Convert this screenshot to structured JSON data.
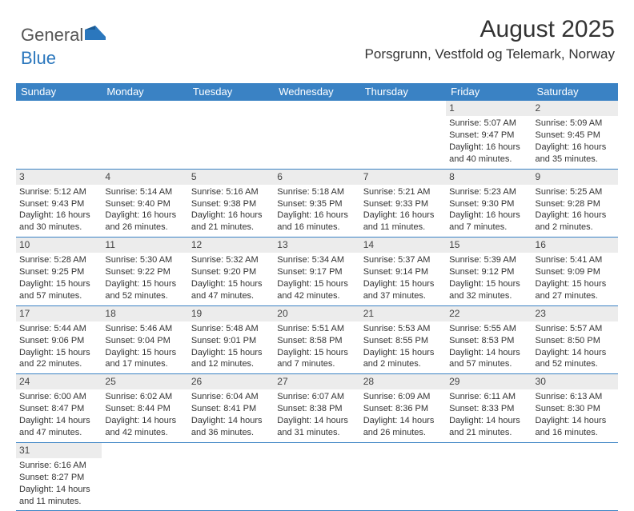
{
  "logo": {
    "text1": "General",
    "text2": "Blue"
  },
  "header": {
    "month_title": "August 2025",
    "location": "Porsgrunn, Vestfold og Telemark, Norway"
  },
  "colors": {
    "header_bg": "#3a82c4",
    "day_num_bg": "#ececec",
    "row_border": "#3a82c4"
  },
  "weekdays": [
    "Sunday",
    "Monday",
    "Tuesday",
    "Wednesday",
    "Thursday",
    "Friday",
    "Saturday"
  ],
  "weeks": [
    [
      null,
      null,
      null,
      null,
      null,
      {
        "n": "1",
        "sunrise": "Sunrise: 5:07 AM",
        "sunset": "Sunset: 9:47 PM",
        "day1": "Daylight: 16 hours",
        "day2": "and 40 minutes."
      },
      {
        "n": "2",
        "sunrise": "Sunrise: 5:09 AM",
        "sunset": "Sunset: 9:45 PM",
        "day1": "Daylight: 16 hours",
        "day2": "and 35 minutes."
      }
    ],
    [
      {
        "n": "3",
        "sunrise": "Sunrise: 5:12 AM",
        "sunset": "Sunset: 9:43 PM",
        "day1": "Daylight: 16 hours",
        "day2": "and 30 minutes."
      },
      {
        "n": "4",
        "sunrise": "Sunrise: 5:14 AM",
        "sunset": "Sunset: 9:40 PM",
        "day1": "Daylight: 16 hours",
        "day2": "and 26 minutes."
      },
      {
        "n": "5",
        "sunrise": "Sunrise: 5:16 AM",
        "sunset": "Sunset: 9:38 PM",
        "day1": "Daylight: 16 hours",
        "day2": "and 21 minutes."
      },
      {
        "n": "6",
        "sunrise": "Sunrise: 5:18 AM",
        "sunset": "Sunset: 9:35 PM",
        "day1": "Daylight: 16 hours",
        "day2": "and 16 minutes."
      },
      {
        "n": "7",
        "sunrise": "Sunrise: 5:21 AM",
        "sunset": "Sunset: 9:33 PM",
        "day1": "Daylight: 16 hours",
        "day2": "and 11 minutes."
      },
      {
        "n": "8",
        "sunrise": "Sunrise: 5:23 AM",
        "sunset": "Sunset: 9:30 PM",
        "day1": "Daylight: 16 hours",
        "day2": "and 7 minutes."
      },
      {
        "n": "9",
        "sunrise": "Sunrise: 5:25 AM",
        "sunset": "Sunset: 9:28 PM",
        "day1": "Daylight: 16 hours",
        "day2": "and 2 minutes."
      }
    ],
    [
      {
        "n": "10",
        "sunrise": "Sunrise: 5:28 AM",
        "sunset": "Sunset: 9:25 PM",
        "day1": "Daylight: 15 hours",
        "day2": "and 57 minutes."
      },
      {
        "n": "11",
        "sunrise": "Sunrise: 5:30 AM",
        "sunset": "Sunset: 9:22 PM",
        "day1": "Daylight: 15 hours",
        "day2": "and 52 minutes."
      },
      {
        "n": "12",
        "sunrise": "Sunrise: 5:32 AM",
        "sunset": "Sunset: 9:20 PM",
        "day1": "Daylight: 15 hours",
        "day2": "and 47 minutes."
      },
      {
        "n": "13",
        "sunrise": "Sunrise: 5:34 AM",
        "sunset": "Sunset: 9:17 PM",
        "day1": "Daylight: 15 hours",
        "day2": "and 42 minutes."
      },
      {
        "n": "14",
        "sunrise": "Sunrise: 5:37 AM",
        "sunset": "Sunset: 9:14 PM",
        "day1": "Daylight: 15 hours",
        "day2": "and 37 minutes."
      },
      {
        "n": "15",
        "sunrise": "Sunrise: 5:39 AM",
        "sunset": "Sunset: 9:12 PM",
        "day1": "Daylight: 15 hours",
        "day2": "and 32 minutes."
      },
      {
        "n": "16",
        "sunrise": "Sunrise: 5:41 AM",
        "sunset": "Sunset: 9:09 PM",
        "day1": "Daylight: 15 hours",
        "day2": "and 27 minutes."
      }
    ],
    [
      {
        "n": "17",
        "sunrise": "Sunrise: 5:44 AM",
        "sunset": "Sunset: 9:06 PM",
        "day1": "Daylight: 15 hours",
        "day2": "and 22 minutes."
      },
      {
        "n": "18",
        "sunrise": "Sunrise: 5:46 AM",
        "sunset": "Sunset: 9:04 PM",
        "day1": "Daylight: 15 hours",
        "day2": "and 17 minutes."
      },
      {
        "n": "19",
        "sunrise": "Sunrise: 5:48 AM",
        "sunset": "Sunset: 9:01 PM",
        "day1": "Daylight: 15 hours",
        "day2": "and 12 minutes."
      },
      {
        "n": "20",
        "sunrise": "Sunrise: 5:51 AM",
        "sunset": "Sunset: 8:58 PM",
        "day1": "Daylight: 15 hours",
        "day2": "and 7 minutes."
      },
      {
        "n": "21",
        "sunrise": "Sunrise: 5:53 AM",
        "sunset": "Sunset: 8:55 PM",
        "day1": "Daylight: 15 hours",
        "day2": "and 2 minutes."
      },
      {
        "n": "22",
        "sunrise": "Sunrise: 5:55 AM",
        "sunset": "Sunset: 8:53 PM",
        "day1": "Daylight: 14 hours",
        "day2": "and 57 minutes."
      },
      {
        "n": "23",
        "sunrise": "Sunrise: 5:57 AM",
        "sunset": "Sunset: 8:50 PM",
        "day1": "Daylight: 14 hours",
        "day2": "and 52 minutes."
      }
    ],
    [
      {
        "n": "24",
        "sunrise": "Sunrise: 6:00 AM",
        "sunset": "Sunset: 8:47 PM",
        "day1": "Daylight: 14 hours",
        "day2": "and 47 minutes."
      },
      {
        "n": "25",
        "sunrise": "Sunrise: 6:02 AM",
        "sunset": "Sunset: 8:44 PM",
        "day1": "Daylight: 14 hours",
        "day2": "and 42 minutes."
      },
      {
        "n": "26",
        "sunrise": "Sunrise: 6:04 AM",
        "sunset": "Sunset: 8:41 PM",
        "day1": "Daylight: 14 hours",
        "day2": "and 36 minutes."
      },
      {
        "n": "27",
        "sunrise": "Sunrise: 6:07 AM",
        "sunset": "Sunset: 8:38 PM",
        "day1": "Daylight: 14 hours",
        "day2": "and 31 minutes."
      },
      {
        "n": "28",
        "sunrise": "Sunrise: 6:09 AM",
        "sunset": "Sunset: 8:36 PM",
        "day1": "Daylight: 14 hours",
        "day2": "and 26 minutes."
      },
      {
        "n": "29",
        "sunrise": "Sunrise: 6:11 AM",
        "sunset": "Sunset: 8:33 PM",
        "day1": "Daylight: 14 hours",
        "day2": "and 21 minutes."
      },
      {
        "n": "30",
        "sunrise": "Sunrise: 6:13 AM",
        "sunset": "Sunset: 8:30 PM",
        "day1": "Daylight: 14 hours",
        "day2": "and 16 minutes."
      }
    ],
    [
      {
        "n": "31",
        "sunrise": "Sunrise: 6:16 AM",
        "sunset": "Sunset: 8:27 PM",
        "day1": "Daylight: 14 hours",
        "day2": "and 11 minutes."
      },
      null,
      null,
      null,
      null,
      null,
      null
    ]
  ]
}
